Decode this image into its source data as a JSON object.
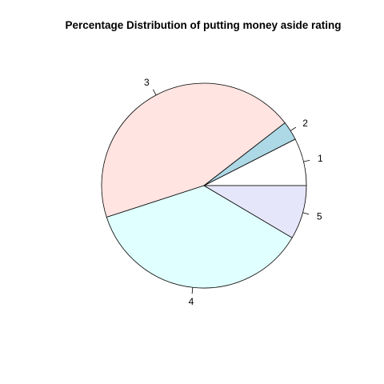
{
  "chart_data": {
    "type": "pie",
    "title": "Percentage Distribution of putting money aside rating",
    "start_angle_deg": 0,
    "direction": "counterclockwise",
    "slices": [
      {
        "label": "1",
        "value": 7.5,
        "color": "#FFFFFF"
      },
      {
        "label": "2",
        "value": 3.0,
        "color": "#ADD8E6"
      },
      {
        "label": "3",
        "value": 44.5,
        "color": "#FFE4E1"
      },
      {
        "label": "4",
        "value": 36.5,
        "color": "#E0FFFF"
      },
      {
        "label": "5",
        "value": 8.5,
        "color": "#E6E6FA"
      }
    ]
  }
}
